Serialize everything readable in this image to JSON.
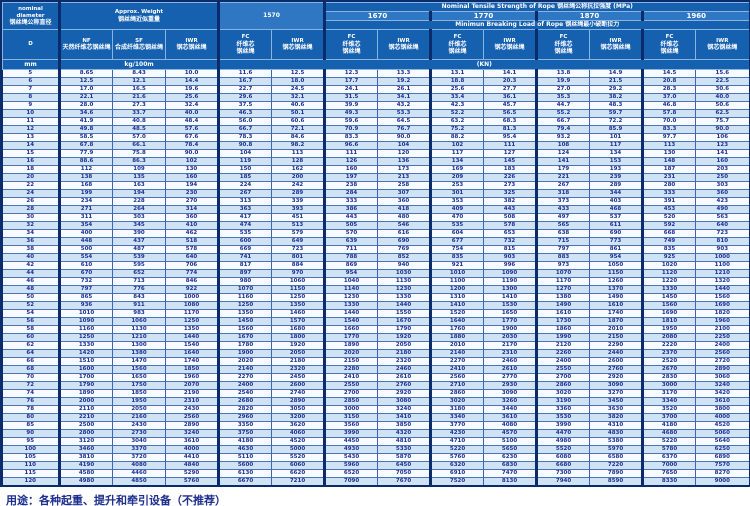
{
  "header": {
    "nominal": {
      "en": "nominal\ndiameter",
      "zh": "钢丝绳公称直径"
    },
    "approx": {
      "en": "Approx. Weight",
      "zh": "钢丝绳近似重量"
    },
    "tensile_title": "Nominal Tensile Strength of Rope 钢丝绳公称抗拉强度 (MPa)",
    "breaking_title": "Minimun Breaking Load of Rope 钢丝绳最小破断拉力",
    "strengths": [
      "1570",
      "1670",
      "1770",
      "1870",
      "1960"
    ],
    "cols": {
      "d": "D",
      "nf": {
        "en": "NF",
        "zh": "天然纤维芯钢丝绳"
      },
      "sf": {
        "en": "SF",
        "zh": "合成纤维芯钢丝绳"
      },
      "iwr": {
        "en": "IWR",
        "zh": "钢芯钢丝绳"
      },
      "fc_load": {
        "en": "FC",
        "zh": "纤维芯\n钢丝绳"
      },
      "iwr_load": {
        "en": "IWR",
        "zh": "钢芯钢丝绳"
      }
    },
    "units": {
      "d": "mm",
      "weight": "kg/100m",
      "load": "(KN)"
    }
  },
  "note": "用途：各种起重、提升和牵引设备（不推荐）",
  "colors": {
    "navy": "#0a2c6a",
    "header_blue": "#1660b0",
    "band_blue": "#2f77c2",
    "row_alt_blue": "#cfe3f5",
    "text_navy": "#22308c"
  },
  "rows": [
    [
      "5",
      "8.65",
      "8.43",
      "10.0",
      "11.6",
      "12.5",
      "12.3",
      "13.3",
      "13.1",
      "14.1",
      "13.8",
      "14.9",
      "14.5",
      "15.6"
    ],
    [
      "6",
      "12.5",
      "12.1",
      "14.4",
      "16.7",
      "18.0",
      "17.7",
      "19.2",
      "18.8",
      "20.3",
      "19.9",
      "21.5",
      "20.8",
      "22.5"
    ],
    [
      "7",
      "17.0",
      "16.5",
      "19.6",
      "22.7",
      "24.5",
      "24.1",
      "26.1",
      "25.6",
      "27.7",
      "27.0",
      "29.2",
      "28.3",
      "30.6"
    ],
    [
      "8",
      "22.1",
      "21.6",
      "25.6",
      "29.6",
      "32.1",
      "31.5",
      "34.1",
      "33.4",
      "36.1",
      "35.3",
      "38.2",
      "37.0",
      "40.0"
    ],
    [
      "9",
      "28.0",
      "27.3",
      "32.4",
      "37.5",
      "40.6",
      "39.9",
      "43.2",
      "42.3",
      "45.7",
      "44.7",
      "48.3",
      "46.8",
      "50.6"
    ],
    [
      "10",
      "34.6",
      "33.7",
      "40.0",
      "46.3",
      "50.1",
      "49.3",
      "53.3",
      "52.2",
      "56.5",
      "55.2",
      "59.7",
      "57.8",
      "62.5"
    ],
    [
      "11",
      "41.9",
      "40.8",
      "48.4",
      "56.0",
      "60.6",
      "59.6",
      "64.5",
      "63.2",
      "68.3",
      "66.7",
      "72.2",
      "70.0",
      "75.7"
    ],
    [
      "12",
      "49.8",
      "48.5",
      "57.6",
      "66.7",
      "72.1",
      "70.9",
      "76.7",
      "75.2",
      "81.3",
      "79.4",
      "85.9",
      "83.3",
      "90.0"
    ],
    [
      "13",
      "58.5",
      "57.0",
      "67.6",
      "78.3",
      "84.6",
      "83.3",
      "90.0",
      "88.2",
      "95.4",
      "93.2",
      "101",
      "97.7",
      "106"
    ],
    [
      "14",
      "67.8",
      "66.1",
      "78.4",
      "90.8",
      "98.2",
      "96.6",
      "104",
      "102",
      "111",
      "108",
      "117",
      "113",
      "123"
    ],
    [
      "15",
      "77.9",
      "75.8",
      "90.0",
      "104",
      "113",
      "111",
      "120",
      "117",
      "127",
      "124",
      "134",
      "130",
      "141"
    ],
    [
      "16",
      "88.6",
      "86.3",
      "102",
      "119",
      "128",
      "126",
      "136",
      "134",
      "145",
      "141",
      "153",
      "148",
      "160"
    ],
    [
      "18",
      "112",
      "109",
      "130",
      "150",
      "162",
      "160",
      "173",
      "169",
      "183",
      "179",
      "193",
      "187",
      "203"
    ],
    [
      "20",
      "138",
      "135",
      "160",
      "185",
      "200",
      "197",
      "213",
      "209",
      "226",
      "221",
      "239",
      "231",
      "250"
    ],
    [
      "22",
      "168",
      "163",
      "194",
      "224",
      "242",
      "238",
      "258",
      "253",
      "273",
      "267",
      "289",
      "280",
      "303"
    ],
    [
      "24",
      "199",
      "194",
      "230",
      "267",
      "289",
      "284",
      "307",
      "301",
      "325",
      "318",
      "344",
      "333",
      "360"
    ],
    [
      "26",
      "234",
      "228",
      "270",
      "313",
      "339",
      "333",
      "360",
      "353",
      "382",
      "373",
      "403",
      "391",
      "423"
    ],
    [
      "28",
      "271",
      "264",
      "314",
      "363",
      "393",
      "386",
      "418",
      "409",
      "443",
      "433",
      "468",
      "453",
      "490"
    ],
    [
      "30",
      "311",
      "303",
      "360",
      "417",
      "451",
      "443",
      "480",
      "470",
      "508",
      "497",
      "537",
      "520",
      "563"
    ],
    [
      "32",
      "354",
      "345",
      "410",
      "474",
      "513",
      "505",
      "546",
      "535",
      "578",
      "565",
      "611",
      "592",
      "640"
    ],
    [
      "34",
      "400",
      "390",
      "462",
      "535",
      "579",
      "570",
      "616",
      "604",
      "653",
      "638",
      "690",
      "668",
      "723"
    ],
    [
      "36",
      "448",
      "437",
      "518",
      "600",
      "649",
      "639",
      "690",
      "677",
      "732",
      "715",
      "773",
      "749",
      "810"
    ],
    [
      "38",
      "500",
      "487",
      "578",
      "669",
      "723",
      "711",
      "769",
      "754",
      "815",
      "797",
      "861",
      "835",
      "903"
    ],
    [
      "40",
      "554",
      "539",
      "640",
      "741",
      "801",
      "788",
      "852",
      "835",
      "903",
      "883",
      "954",
      "925",
      "1000"
    ],
    [
      "42",
      "610",
      "595",
      "706",
      "817",
      "884",
      "869",
      "940",
      "921",
      "996",
      "973",
      "1050",
      "1020",
      "1100"
    ],
    [
      "44",
      "670",
      "652",
      "774",
      "897",
      "970",
      "954",
      "1030",
      "1010",
      "1090",
      "1070",
      "1150",
      "1120",
      "1210"
    ],
    [
      "46",
      "732",
      "713",
      "846",
      "980",
      "1060",
      "1040",
      "1130",
      "1100",
      "1190",
      "1170",
      "1260",
      "1220",
      "1320"
    ],
    [
      "48",
      "797",
      "776",
      "922",
      "1070",
      "1150",
      "1140",
      "1230",
      "1200",
      "1300",
      "1270",
      "1370",
      "1330",
      "1440"
    ],
    [
      "50",
      "865",
      "843",
      "1000",
      "1160",
      "1250",
      "1230",
      "1330",
      "1310",
      "1410",
      "1380",
      "1490",
      "1450",
      "1560"
    ],
    [
      "52",
      "936",
      "911",
      "1080",
      "1250",
      "1350",
      "1330",
      "1440",
      "1410",
      "1530",
      "1490",
      "1610",
      "1560",
      "1690"
    ],
    [
      "54",
      "1010",
      "983",
      "1170",
      "1350",
      "1460",
      "1440",
      "1550",
      "1520",
      "1650",
      "1610",
      "1740",
      "1690",
      "1820"
    ],
    [
      "56",
      "1090",
      "1060",
      "1250",
      "1450",
      "1570",
      "1540",
      "1670",
      "1640",
      "1770",
      "1730",
      "1870",
      "1810",
      "1960"
    ],
    [
      "58",
      "1160",
      "1130",
      "1350",
      "1560",
      "1680",
      "1660",
      "1790",
      "1760",
      "1900",
      "1860",
      "2010",
      "1950",
      "2100"
    ],
    [
      "60",
      "1250",
      "1210",
      "1440",
      "1670",
      "1800",
      "1770",
      "1920",
      "1880",
      "2030",
      "1990",
      "2150",
      "2080",
      "2250"
    ],
    [
      "62",
      "1330",
      "1300",
      "1540",
      "1780",
      "1920",
      "1890",
      "2050",
      "2010",
      "2170",
      "2120",
      "2290",
      "2220",
      "2400"
    ],
    [
      "64",
      "1420",
      "1380",
      "1640",
      "1900",
      "2050",
      "2020",
      "2180",
      "2140",
      "2310",
      "2260",
      "2440",
      "2370",
      "2560"
    ],
    [
      "66",
      "1510",
      "1470",
      "1740",
      "2020",
      "2180",
      "2150",
      "2320",
      "2270",
      "2460",
      "2400",
      "2600",
      "2520",
      "2720"
    ],
    [
      "68",
      "1600",
      "1560",
      "1850",
      "2140",
      "2320",
      "2280",
      "2460",
      "2410",
      "2610",
      "2550",
      "2760",
      "2670",
      "2890"
    ],
    [
      "70",
      "1700",
      "1650",
      "1960",
      "2270",
      "2450",
      "2410",
      "2610",
      "2560",
      "2770",
      "2700",
      "2920",
      "2830",
      "3060"
    ],
    [
      "72",
      "1790",
      "1750",
      "2070",
      "2400",
      "2600",
      "2550",
      "2760",
      "2710",
      "2930",
      "2860",
      "3090",
      "3000",
      "3240"
    ],
    [
      "74",
      "1890",
      "1850",
      "2190",
      "2540",
      "2740",
      "2700",
      "2920",
      "2860",
      "3090",
      "3020",
      "3270",
      "3170",
      "3420"
    ],
    [
      "76",
      "2000",
      "1950",
      "2310",
      "2680",
      "2890",
      "2850",
      "3080",
      "3020",
      "3260",
      "3190",
      "3450",
      "3340",
      "3610"
    ],
    [
      "78",
      "2110",
      "2050",
      "2430",
      "2820",
      "3050",
      "3000",
      "3240",
      "3180",
      "3440",
      "3360",
      "3630",
      "3520",
      "3800"
    ],
    [
      "80",
      "2210",
      "2160",
      "2560",
      "2960",
      "3200",
      "3150",
      "3410",
      "3340",
      "3610",
      "3530",
      "3820",
      "3700",
      "4000"
    ],
    [
      "85",
      "2500",
      "2430",
      "2890",
      "3350",
      "3620",
      "3560",
      "3850",
      "3770",
      "4080",
      "3990",
      "4310",
      "4180",
      "4520"
    ],
    [
      "90",
      "2800",
      "2730",
      "3240",
      "3750",
      "4060",
      "3990",
      "4320",
      "4230",
      "4570",
      "4470",
      "4830",
      "4680",
      "5060"
    ],
    [
      "95",
      "3120",
      "3040",
      "3610",
      "4180",
      "4520",
      "4450",
      "4810",
      "4710",
      "5100",
      "4980",
      "5380",
      "5220",
      "5640"
    ],
    [
      "100",
      "3460",
      "3370",
      "4000",
      "4630",
      "5000",
      "4930",
      "5330",
      "5220",
      "5650",
      "5520",
      "5970",
      "5780",
      "6250"
    ],
    [
      "105",
      "3810",
      "3720",
      "4410",
      "5110",
      "5520",
      "5430",
      "5870",
      "5760",
      "6230",
      "6080",
      "6580",
      "6370",
      "6890"
    ],
    [
      "110",
      "4190",
      "4080",
      "4840",
      "5600",
      "6060",
      "5960",
      "6450",
      "6320",
      "6830",
      "6680",
      "7220",
      "7000",
      "7570"
    ],
    [
      "115",
      "4580",
      "4460",
      "5290",
      "6130",
      "6620",
      "6520",
      "7050",
      "6910",
      "7470",
      "7300",
      "7890",
      "7650",
      "8270"
    ],
    [
      "120",
      "4980",
      "4850",
      "5760",
      "6670",
      "7210",
      "7090",
      "7670",
      "7520",
      "8130",
      "7940",
      "8590",
      "8330",
      "9000"
    ]
  ]
}
